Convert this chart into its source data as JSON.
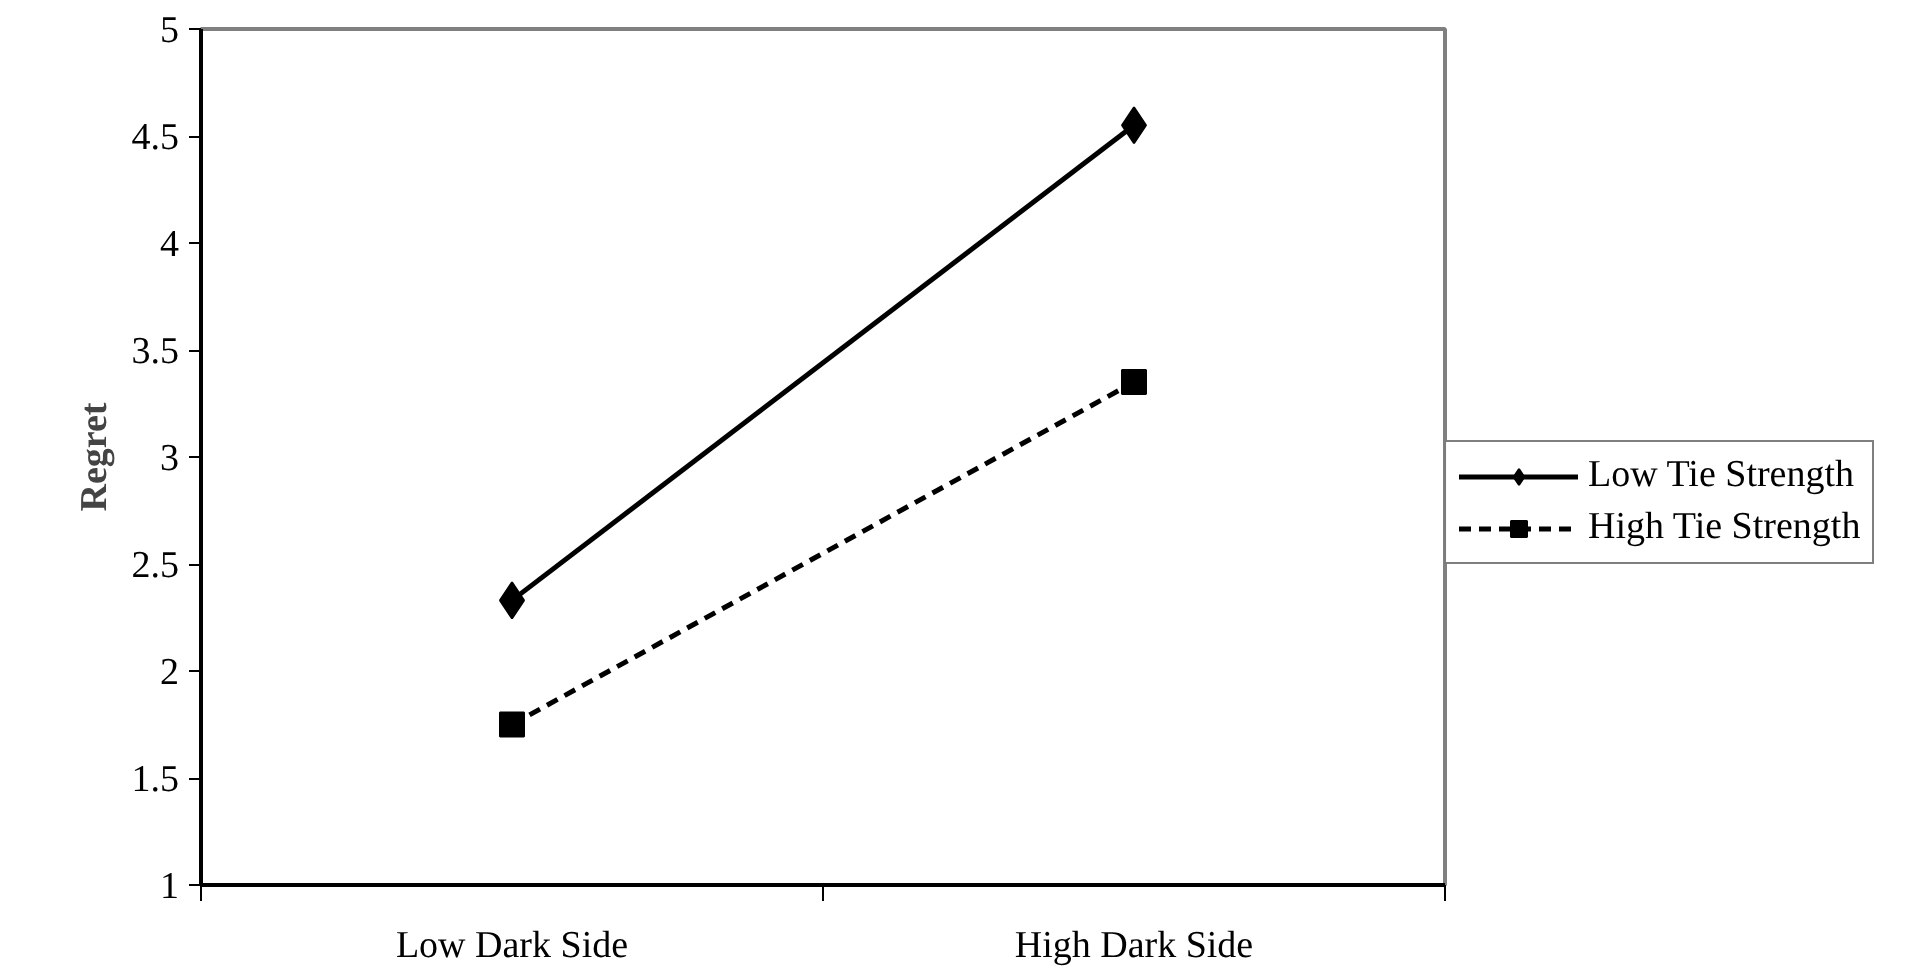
{
  "chart_data": {
    "type": "line",
    "ylabel": "Regret",
    "categories": [
      "Low Dark Side",
      "High Dark Side"
    ],
    "series": [
      {
        "name": "Low Tie Strength",
        "color": "#000000",
        "values": [
          2.33,
          4.55
        ],
        "marker": "diamond",
        "line_style": "solid"
      },
      {
        "name": "High Tie Strength",
        "color": "#000000",
        "values": [
          1.75,
          3.35
        ],
        "marker": "square",
        "line_style": "dashed"
      }
    ],
    "ylim": [
      1,
      5
    ],
    "yticks": [
      1,
      1.5,
      2,
      2.5,
      3,
      3.5,
      4,
      4.5,
      5
    ],
    "grid": false,
    "legend": "right"
  }
}
